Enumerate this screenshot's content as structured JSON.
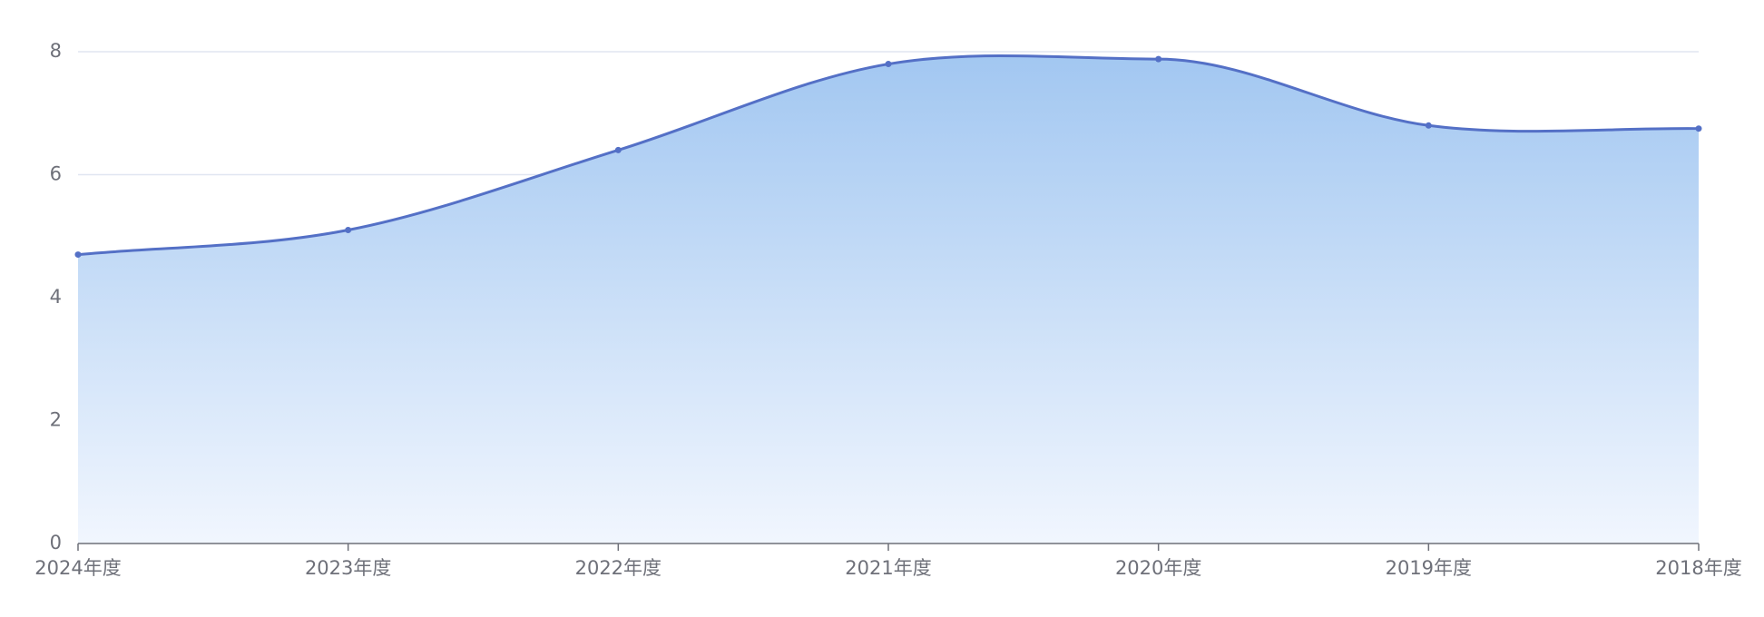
{
  "chart_data": {
    "type": "area",
    "categories": [
      "2024年度",
      "2023年度",
      "2022年度",
      "2021年度",
      "2020年度",
      "2019年度",
      "2018年度"
    ],
    "series": [
      {
        "color": "#5470c6",
        "values": [
          4.7,
          5.1,
          6.4,
          7.8,
          7.88,
          6.8,
          6.75
        ]
      }
    ],
    "ylim": [
      0,
      8
    ],
    "yticks": [
      0,
      2,
      4,
      6,
      8
    ],
    "grid": true,
    "smooth": true
  }
}
